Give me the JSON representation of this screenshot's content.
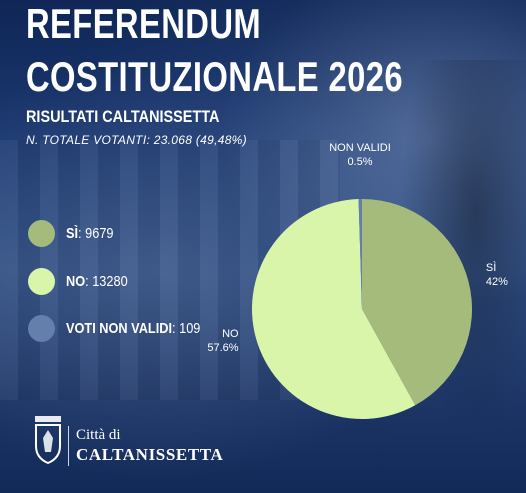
{
  "header": {
    "title_line1": "REFERENDUM",
    "title_line2": "COSTITUZIONALE 2026",
    "subtitle": "RISULTATI CALTANISSETTA",
    "voters": "N. TOTALE VOTANTI: 23.068 (49,48%)"
  },
  "legend": [
    {
      "label": "SÌ",
      "value": "9679",
      "color": "#a4bb7c"
    },
    {
      "label": "NO",
      "value": "13280",
      "color": "#d8f5aa"
    },
    {
      "label": "VOTI NON VALIDI",
      "value": "109",
      "color": "#647fab"
    }
  ],
  "chart_data": {
    "type": "pie",
    "slices": [
      {
        "label": "SÌ",
        "value": 42,
        "display": "42%",
        "color": "#a4bb7c"
      },
      {
        "label": "NO",
        "value": 57.6,
        "display": "57.6%",
        "color": "#d8f5aa"
      },
      {
        "label": "NON VALIDI",
        "value": 0.5,
        "display": "0.5%",
        "color": "#647fab"
      }
    ]
  },
  "footer": {
    "city_line1": "Città di",
    "city_line2": "CALTANISSETTA"
  }
}
